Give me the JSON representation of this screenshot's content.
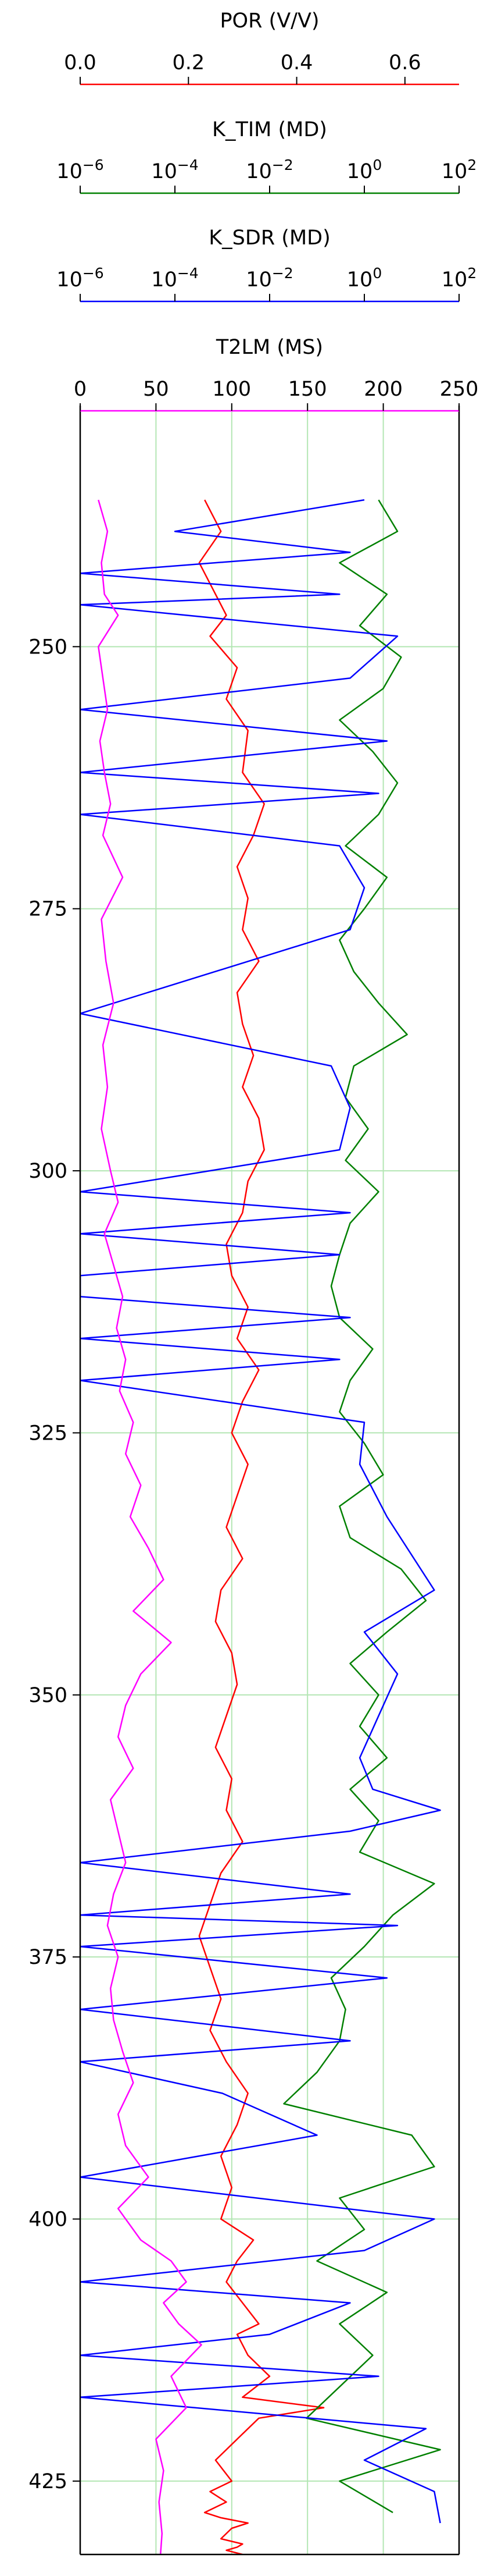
{
  "chart_data": {
    "type": "line",
    "orientation": "vertical-depth",
    "y_axis": {
      "range": [
        227,
        432
      ],
      "inverted": true,
      "ticks": [
        250,
        275,
        300,
        325,
        350,
        375,
        400,
        425
      ]
    },
    "tracks": [
      {
        "title": "POR (V/V)",
        "scale": "linear",
        "range": [
          0,
          0.7
        ],
        "ticks": [
          0.0,
          0.2,
          0.4,
          0.6
        ],
        "tick_labels": [
          "0.0",
          "0.2",
          "0.4",
          "0.6"
        ],
        "color": "#ff0000"
      },
      {
        "title": "K_TIM (MD)",
        "scale": "log",
        "range": [
          1e-06,
          100
        ],
        "ticks": [
          1e-06,
          0.0001,
          0.01,
          1,
          100
        ],
        "tick_label_mantissa": "10",
        "tick_label_exponents": [
          "−6",
          "−4",
          "−2",
          "0",
          "2"
        ],
        "color": "#008000"
      },
      {
        "title": "K_SDR (MD)",
        "scale": "log",
        "range": [
          1e-06,
          100
        ],
        "ticks": [
          1e-06,
          0.0001,
          0.01,
          1,
          100
        ],
        "tick_label_mantissa": "10",
        "tick_label_exponents": [
          "−6",
          "−4",
          "−2",
          "0",
          "2"
        ],
        "color": "#0000ff"
      },
      {
        "title": "T2LM (MS)",
        "scale": "linear",
        "range": [
          0,
          250
        ],
        "ticks": [
          0,
          50,
          100,
          150,
          200,
          250
        ],
        "tick_labels": [
          "0",
          "50",
          "100",
          "150",
          "200",
          "250"
        ],
        "color": "#ff00ff"
      }
    ],
    "grid": true,
    "grid_color": "#b3e6b3",
    "series": [
      {
        "track": 0,
        "color": "#ff0000",
        "x": [
          0.23,
          0.26,
          0.22,
          0.25,
          0.27,
          0.24,
          0.29,
          0.27,
          0.31,
          0.3,
          0.34,
          0.32,
          0.29,
          0.31,
          0.3,
          0.33,
          0.29,
          0.3,
          0.32,
          0.3,
          0.33,
          0.34,
          0.31,
          0.3,
          0.27,
          0.28,
          0.31,
          0.29,
          0.33,
          0.3,
          0.28,
          0.31,
          0.29,
          0.27,
          0.3,
          0.26,
          0.25,
          0.28,
          0.29,
          0.27,
          0.25,
          0.28,
          0.27,
          0.3,
          0.26,
          0.24,
          0.22,
          0.24,
          0.26,
          0.24,
          0.27,
          0.31,
          0.29,
          0.26,
          0.28,
          0.26,
          0.32,
          0.29,
          0.27,
          0.3,
          0.33,
          0.29,
          0.31,
          0.35,
          0.3,
          0.45,
          0.33,
          0.29,
          0.25,
          0.28,
          0.24,
          0.27,
          0.23,
          0.26,
          0.31,
          0.28,
          0.27,
          0.26,
          0.3,
          0.29,
          0.27,
          0.3
        ],
        "y": [
          236,
          239,
          242,
          245,
          247,
          249,
          252,
          255,
          258,
          262,
          265,
          268,
          271,
          274,
          277,
          280,
          283,
          286,
          289,
          292,
          295,
          298,
          301,
          304,
          307,
          310,
          313,
          316,
          319,
          322,
          325,
          328,
          331,
          334,
          337,
          340,
          343,
          346,
          349,
          352,
          355,
          358,
          361,
          364,
          367,
          370,
          373,
          376,
          379,
          382,
          385,
          388,
          391,
          394,
          397,
          400,
          402,
          404,
          406,
          408,
          410,
          411,
          413,
          415,
          417,
          418,
          419,
          421,
          423,
          425,
          426,
          427,
          428,
          428.5,
          429,
          429.5,
          430,
          430.5,
          431,
          431.3,
          431.6,
          432
        ]
      },
      {
        "track": 1,
        "color": "#008000",
        "x": [
          2.0,
          5.0,
          0.3,
          3.0,
          0.8,
          6.0,
          2.5,
          0.3,
          1.5,
          5.0,
          2.0,
          0.4,
          3.0,
          1.0,
          0.3,
          0.6,
          2.0,
          8.0,
          0.6,
          0.4,
          1.2,
          0.4,
          2.0,
          0.5,
          0.3,
          0.2,
          0.3,
          1.5,
          0.5,
          0.3,
          1.0,
          2.5,
          0.3,
          0.5,
          6.0,
          20.0,
          3.0,
          0.5,
          2.0,
          0.8,
          3.0,
          0.5,
          2.0,
          0.8,
          30.0,
          4.0,
          1.0,
          0.2,
          0.4,
          0.3,
          0.1,
          0.02,
          10.0,
          30.0,
          0.3,
          1.0,
          0.1,
          3.0,
          0.3,
          1.5,
          0.3,
          0.06,
          40.0,
          0.3,
          4.0
        ],
        "y": [
          236,
          239,
          242,
          245,
          248,
          251,
          254,
          257,
          260,
          263,
          266,
          269,
          272,
          275,
          278,
          281,
          284,
          287,
          290,
          293,
          296,
          299,
          302,
          305,
          308,
          311,
          314,
          317,
          320,
          323,
          326,
          329,
          332,
          335,
          338,
          341,
          344,
          347,
          350,
          353,
          356,
          359,
          362,
          365,
          368,
          371,
          374,
          377,
          380,
          383,
          386,
          389,
          392,
          395,
          398,
          401,
          404,
          407,
          410,
          413,
          416,
          419,
          422,
          425,
          428
        ]
      },
      {
        "track": 2,
        "color": "#0000ff",
        "x": [
          1.0,
          0.0001,
          0.5,
          1e-06,
          0.3,
          1e-06,
          5.0,
          0.5,
          1e-06,
          3.0,
          1e-06,
          2.0,
          1e-06,
          0.3,
          1.0,
          0.5,
          1e-06,
          0.2,
          0.5,
          0.3,
          1e-06,
          0.5,
          1e-06,
          0.3,
          1e-06,
          1e-06,
          0.5,
          1e-06,
          0.3,
          1e-06,
          1.0,
          0.8,
          3.0,
          30.0,
          1.0,
          5.0,
          2.0,
          0.8,
          1.5,
          40.0,
          0.5,
          1e-06,
          0.5,
          1e-06,
          5.0,
          1e-06,
          3.0,
          1e-06,
          0.5,
          1e-06,
          0.001,
          0.1,
          1e-06,
          30.0,
          1.0,
          1e-06,
          0.5,
          0.01,
          1e-06,
          2.0,
          1e-06,
          20.0,
          1.0,
          30.0,
          40.0
        ],
        "y": [
          236,
          239,
          241,
          243,
          245,
          246,
          249,
          253,
          256,
          259,
          262,
          264,
          266,
          269,
          273,
          277,
          285,
          290,
          294,
          298,
          302,
          304,
          306,
          308,
          310,
          312,
          314,
          316,
          318,
          320,
          324,
          328,
          333,
          340,
          344,
          348,
          352,
          356,
          359,
          361,
          363,
          366,
          369,
          371,
          372,
          374,
          377,
          380,
          383,
          385,
          388,
          392,
          396,
          400,
          403,
          406,
          408,
          411,
          413,
          415,
          417,
          420,
          423,
          426,
          429
        ]
      },
      {
        "track": 3,
        "color": "#ff00ff",
        "x": [
          12,
          18,
          14,
          16,
          25,
          12,
          15,
          18,
          13,
          16,
          20,
          15,
          28,
          14,
          17,
          22,
          15,
          18,
          14,
          20,
          25,
          16,
          22,
          28,
          24,
          30,
          26,
          35,
          30,
          40,
          33,
          45,
          55,
          35,
          60,
          40,
          30,
          25,
          35,
          20,
          25,
          30,
          22,
          18,
          25,
          20,
          22,
          28,
          35,
          25,
          30,
          45,
          25,
          30,
          40,
          60,
          70,
          55,
          65,
          80,
          60,
          70,
          50,
          55,
          52,
          54,
          53
        ],
        "y": [
          236,
          239,
          242,
          245,
          247,
          250,
          253,
          256,
          259,
          262,
          265,
          268,
          272,
          276,
          280,
          284,
          288,
          292,
          296,
          300,
          303,
          306,
          309,
          312,
          315,
          318,
          321,
          324,
          327,
          330,
          333,
          336,
          339,
          342,
          345,
          348,
          351,
          354,
          357,
          360,
          363,
          366,
          369,
          372,
          375,
          378,
          381,
          384,
          387,
          390,
          393,
          396,
          399,
          400,
          402,
          404,
          406,
          408,
          410,
          412,
          415,
          418,
          421,
          424,
          427,
          430,
          432
        ]
      }
    ]
  }
}
